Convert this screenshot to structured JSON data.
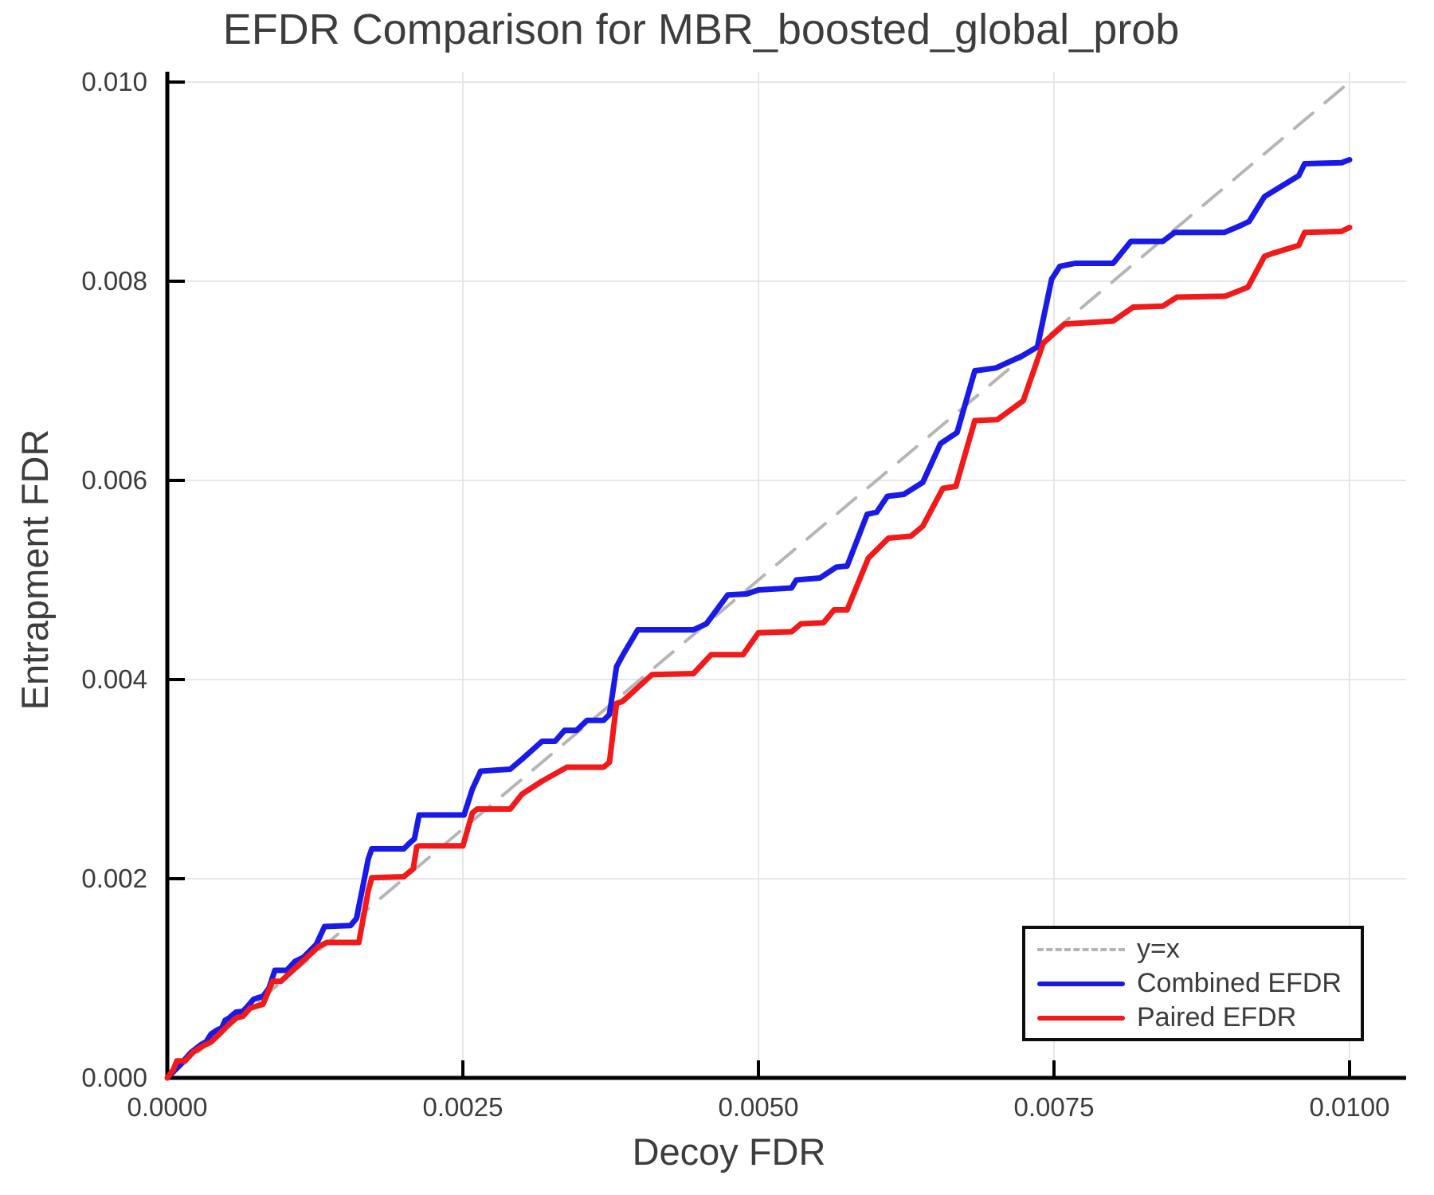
{
  "title": "EFDR Comparison for MBR_boosted_global_prob",
  "axes": {
    "xlabel": "Decoy FDR",
    "ylabel": "Entrapment FDR",
    "x_tick_labels": [
      "0.0000",
      "0.0025",
      "0.0050",
      "0.0075",
      "0.0100"
    ],
    "x_tick_values": [
      0.0,
      0.0025,
      0.005,
      0.0075,
      0.01
    ],
    "y_tick_labels": [
      "0.000",
      "0.002",
      "0.004",
      "0.006",
      "0.008",
      "0.010"
    ],
    "y_tick_values": [
      0.0,
      0.002,
      0.004,
      0.006,
      0.008,
      0.01
    ],
    "xlim": [
      0.0,
      0.01048
    ],
    "ylim": [
      0.0,
      0.0101
    ]
  },
  "colors": {
    "identity": "#b5b5b5",
    "combined": "#1a1ae8",
    "paired": "#f11919",
    "grid": "#e7e7e7",
    "spine": "#000000",
    "text": "#3c3c3c"
  },
  "legend": {
    "items": [
      {
        "label": "y=x",
        "color": "#b5b5b5",
        "style": "dashed"
      },
      {
        "label": "Combined EFDR",
        "color": "#1a1ae8",
        "style": "solid"
      },
      {
        "label": "Paired EFDR",
        "color": "#f11919",
        "style": "solid"
      }
    ]
  },
  "chart_data": {
    "type": "line",
    "title": "EFDR Comparison for MBR_boosted_global_prob",
    "xlabel": "Decoy FDR",
    "ylabel": "Entrapment FDR",
    "xlim": [
      0.0,
      0.01048
    ],
    "ylim": [
      0.0,
      0.0101
    ],
    "grid": true,
    "legend_position": "lower right",
    "series": [
      {
        "name": "y=x",
        "style": "dashed",
        "color": "#b5b5b5",
        "points": [
          [
            0.0,
            0.0
          ],
          [
            0.01,
            0.01
          ]
        ]
      },
      {
        "name": "Combined EFDR",
        "style": "solid",
        "color": "#1a1ae8",
        "points": [
          [
            0.0,
            0.0
          ],
          [
            0.0001,
            0.00012
          ],
          [
            0.0002,
            0.000255
          ],
          [
            0.00028,
            0.00033
          ],
          [
            0.00033,
            0.000365
          ],
          [
            0.00037,
            0.00044
          ],
          [
            0.00042,
            0.00048
          ],
          [
            0.00046,
            0.0005
          ],
          [
            0.00049,
            0.00058
          ],
          [
            0.00052,
            0.0006
          ],
          [
            0.00058,
            0.00066
          ],
          [
            0.00064,
            0.00067
          ],
          [
            0.00068,
            0.00072
          ],
          [
            0.00073,
            0.00079
          ],
          [
            0.00078,
            0.00081
          ],
          [
            0.00081,
            0.00082
          ],
          [
            0.00086,
            0.0009
          ],
          [
            0.00091,
            0.00108
          ],
          [
            0.00101,
            0.00108
          ],
          [
            0.00108,
            0.00117
          ],
          [
            0.00115,
            0.00121
          ],
          [
            0.00126,
            0.00134
          ],
          [
            0.00133,
            0.00152
          ],
          [
            0.00155,
            0.00153
          ],
          [
            0.0016,
            0.0016
          ],
          [
            0.00165,
            0.0019
          ],
          [
            0.0017,
            0.0022
          ],
          [
            0.00173,
            0.0023
          ],
          [
            0.002,
            0.0023
          ],
          [
            0.00206,
            0.00237
          ],
          [
            0.00209,
            0.0024
          ],
          [
            0.00213,
            0.00264
          ],
          [
            0.00251,
            0.00264
          ],
          [
            0.00258,
            0.0029
          ],
          [
            0.00265,
            0.00308
          ],
          [
            0.0029,
            0.0031
          ],
          [
            0.003,
            0.0032
          ],
          [
            0.00317,
            0.00338
          ],
          [
            0.00328,
            0.00338
          ],
          [
            0.00336,
            0.00349
          ],
          [
            0.00346,
            0.00349
          ],
          [
            0.00355,
            0.00359
          ],
          [
            0.00369,
            0.00359
          ],
          [
            0.00374,
            0.00365
          ],
          [
            0.0038,
            0.00413
          ],
          [
            0.00386,
            0.00426
          ],
          [
            0.00398,
            0.0045
          ],
          [
            0.00445,
            0.0045
          ],
          [
            0.00456,
            0.00456
          ],
          [
            0.00474,
            0.00485
          ],
          [
            0.0049,
            0.00486
          ],
          [
            0.005,
            0.0049
          ],
          [
            0.00528,
            0.00492
          ],
          [
            0.00532,
            0.005
          ],
          [
            0.00552,
            0.00502
          ],
          [
            0.00566,
            0.00513
          ],
          [
            0.00575,
            0.00514
          ],
          [
            0.00592,
            0.00566
          ],
          [
            0.006,
            0.00568
          ],
          [
            0.00609,
            0.00584
          ],
          [
            0.00623,
            0.00586
          ],
          [
            0.00639,
            0.00598
          ],
          [
            0.00654,
            0.00637
          ],
          [
            0.00668,
            0.00648
          ],
          [
            0.00683,
            0.0071
          ],
          [
            0.00701,
            0.00713
          ],
          [
            0.00723,
            0.00725
          ],
          [
            0.00736,
            0.00734
          ],
          [
            0.00748,
            0.00802
          ],
          [
            0.00755,
            0.00815
          ],
          [
            0.00768,
            0.00818
          ],
          [
            0.008,
            0.00818
          ],
          [
            0.00815,
            0.0084
          ],
          [
            0.00842,
            0.0084
          ],
          [
            0.00852,
            0.00849
          ],
          [
            0.00894,
            0.00849
          ],
          [
            0.00908,
            0.00856
          ],
          [
            0.00915,
            0.0086
          ],
          [
            0.00928,
            0.00885
          ],
          [
            0.00935,
            0.0089
          ],
          [
            0.00957,
            0.00906
          ],
          [
            0.00962,
            0.00918
          ],
          [
            0.00993,
            0.00919
          ],
          [
            0.01,
            0.00922
          ]
        ]
      },
      {
        "name": "Paired EFDR",
        "style": "solid",
        "color": "#f11919",
        "points": [
          [
            0.0,
            0.0
          ],
          [
            5e-05,
            8e-05
          ],
          [
            8e-05,
            0.00017
          ],
          [
            0.00015,
            0.00017
          ],
          [
            0.00022,
            0.00026
          ],
          [
            0.0003,
            0.00032
          ],
          [
            0.00037,
            0.00036
          ],
          [
            0.00044,
            0.00044
          ],
          [
            0.00049,
            0.0005
          ],
          [
            0.00058,
            0.0006
          ],
          [
            0.00064,
            0.00062
          ],
          [
            0.0007,
            0.0007
          ],
          [
            0.00081,
            0.00074
          ],
          [
            0.00089,
            0.00097
          ],
          [
            0.00096,
            0.00097
          ],
          [
            0.00118,
            0.00121
          ],
          [
            0.00128,
            0.00132
          ],
          [
            0.00135,
            0.00136
          ],
          [
            0.00162,
            0.00136
          ],
          [
            0.0017,
            0.00188
          ],
          [
            0.00173,
            0.00201
          ],
          [
            0.002,
            0.00202
          ],
          [
            0.00208,
            0.0021
          ],
          [
            0.00211,
            0.00232
          ],
          [
            0.00213,
            0.00233
          ],
          [
            0.0025,
            0.00233
          ],
          [
            0.00258,
            0.00266
          ],
          [
            0.00262,
            0.0027
          ],
          [
            0.0029,
            0.0027
          ],
          [
            0.003,
            0.00285
          ],
          [
            0.00317,
            0.00298
          ],
          [
            0.00338,
            0.00312
          ],
          [
            0.00369,
            0.00312
          ],
          [
            0.00374,
            0.00317
          ],
          [
            0.0038,
            0.00376
          ],
          [
            0.00385,
            0.00378
          ],
          [
            0.0041,
            0.00405
          ],
          [
            0.00445,
            0.00406
          ],
          [
            0.0046,
            0.00425
          ],
          [
            0.00487,
            0.00425
          ],
          [
            0.005,
            0.00447
          ],
          [
            0.00528,
            0.00448
          ],
          [
            0.00536,
            0.00456
          ],
          [
            0.00555,
            0.00457
          ],
          [
            0.00564,
            0.0047
          ],
          [
            0.00575,
            0.0047
          ],
          [
            0.00593,
            0.00522
          ],
          [
            0.0061,
            0.00542
          ],
          [
            0.00629,
            0.00544
          ],
          [
            0.00639,
            0.00554
          ],
          [
            0.00656,
            0.00592
          ],
          [
            0.00667,
            0.00594
          ],
          [
            0.00683,
            0.0066
          ],
          [
            0.00702,
            0.00661
          ],
          [
            0.00724,
            0.0068
          ],
          [
            0.00741,
            0.00738
          ],
          [
            0.00759,
            0.00757
          ],
          [
            0.008,
            0.0076
          ],
          [
            0.00817,
            0.00774
          ],
          [
            0.00842,
            0.00775
          ],
          [
            0.00854,
            0.00784
          ],
          [
            0.00895,
            0.00785
          ],
          [
            0.00914,
            0.00794
          ],
          [
            0.00928,
            0.00825
          ],
          [
            0.00935,
            0.00828
          ],
          [
            0.00957,
            0.00836
          ],
          [
            0.00962,
            0.00849
          ],
          [
            0.00993,
            0.0085
          ],
          [
            0.01,
            0.00854
          ]
        ]
      }
    ]
  }
}
